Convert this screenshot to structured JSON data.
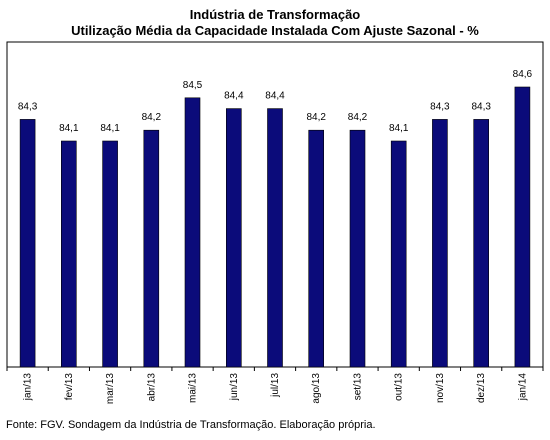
{
  "chart_data": {
    "type": "bar",
    "title": "Indústria de Transformação",
    "subtitle": "Utilização Média da Capacidade Instalada Com Ajuste Sazonal - %",
    "categories": [
      "jan/13",
      "fev/13",
      "mar/13",
      "abr/13",
      "mai/13",
      "jun/13",
      "jul/13",
      "ago/13",
      "set/13",
      "out/13",
      "nov/13",
      "dez/13",
      "jan/14"
    ],
    "values": [
      84.3,
      84.1,
      84.1,
      84.2,
      84.5,
      84.4,
      84.4,
      84.2,
      84.2,
      84.1,
      84.3,
      84.3,
      84.6
    ],
    "value_labels": [
      "84,3",
      "84,1",
      "84,1",
      "84,2",
      "84,5",
      "84,4",
      "84,4",
      "84,2",
      "84,2",
      "84,1",
      "84,3",
      "84,3",
      "84,6"
    ],
    "bar_color": "#0b0b7a",
    "grid": false,
    "legend": "none"
  },
  "footer": {
    "source": "Fonte: FGV. Sondagem da Indústria de Transformação. Elaboração própria."
  }
}
